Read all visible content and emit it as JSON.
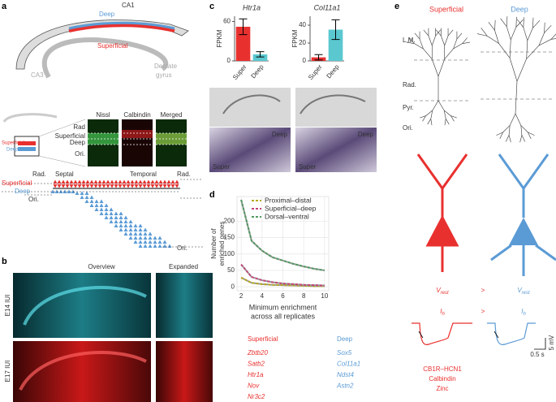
{
  "panel_a": {
    "label": "a",
    "ca1": "CA1",
    "deep": "Deep",
    "superficial": "Superficial",
    "ca3": "CA3",
    "dentate": [
      "Dentate",
      "gyrus"
    ],
    "inset": {
      "superficial": "Superficial",
      "deep": "Deep"
    },
    "stains": [
      "Nissl",
      "Calbindin",
      "Merged"
    ],
    "rows": [
      "Rad",
      "Superficial",
      "Deep",
      "Ori."
    ],
    "axis": {
      "rad_left": "Rad.",
      "septal": "Septal",
      "temporal": "Temporal",
      "rad_right": "Rad.",
      "superficial": "Superficial",
      "deep": "Deep",
      "ori_left": "Ori.",
      "ori_right": "Ori."
    }
  },
  "panel_b": {
    "label": "b",
    "overview": "Overview",
    "expanded": "Expanded",
    "rows": [
      "E14 IUI",
      "E17 IUI"
    ]
  },
  "panel_c": {
    "label": "c",
    "images": [
      {
        "deep": "Deep",
        "super": "Super"
      },
      {
        "deep": "Deep",
        "super": "Super"
      }
    ]
  },
  "panel_d": {
    "label": "d",
    "genes": {
      "superficial": {
        "title": "Superficial",
        "items": [
          "Zbtb20",
          "Satb2",
          "Htr1a",
          "Nov",
          "Nr3c2"
        ]
      },
      "deep": {
        "title": "Deep",
        "items": [
          "Sox5",
          "Col11a1",
          "Ndst4",
          "Astn2"
        ]
      }
    }
  },
  "panel_e": {
    "label": "e",
    "superficial": "Superficial",
    "deep": "Deep",
    "layers": [
      "L.M.",
      "Rad.",
      "Pyr.",
      "Ori."
    ],
    "vrest": {
      "symbol": "V",
      "sub": "rest"
    },
    "compare": [
      ">",
      ">"
    ],
    "ih": {
      "symbol": "I",
      "sub": "h"
    },
    "scale_time": "0.5 s",
    "scale_volt": "5 mV",
    "markers": [
      "CB1R–HCN1",
      "Calbindin",
      "Zinc"
    ]
  },
  "chart_data": [
    {
      "type": "bar",
      "title": "Htr1a",
      "ylabel": "FPKM",
      "categories": [
        "Super",
        "Deep"
      ],
      "values": [
        52,
        10
      ],
      "errors": [
        12,
        4
      ],
      "colors": [
        "#e8312f",
        "#5bc8d0"
      ],
      "ylim": [
        0,
        68
      ],
      "yticks": [
        0,
        60
      ]
    },
    {
      "type": "bar",
      "title": "Col11a1",
      "ylabel": "FPKM",
      "categories": [
        "Super",
        "Deep"
      ],
      "values": [
        4,
        35
      ],
      "errors": [
        3,
        11
      ],
      "colors": [
        "#e8312f",
        "#5bc8d0"
      ],
      "ylim": [
        0,
        50
      ],
      "yticks": [
        0,
        20,
        40
      ]
    },
    {
      "type": "line",
      "xlabel": [
        "Minimum enrichment",
        "across all replicates"
      ],
      "ylabel": [
        "Number of",
        "enriched genes"
      ],
      "x": [
        2,
        3,
        4,
        5,
        6,
        7,
        8,
        9,
        10
      ],
      "series": [
        {
          "name": "Proximal–distal",
          "color": "#b8a81c",
          "values": [
            28,
            12,
            8,
            6,
            5,
            4,
            3,
            2,
            2
          ]
        },
        {
          "name": "Superficial–deep",
          "color": "#c2457a",
          "values": [
            68,
            30,
            20,
            14,
            10,
            8,
            6,
            5,
            4
          ]
        },
        {
          "name": "Dorsal–ventral",
          "color": "#4f9a5f",
          "values": [
            265,
            140,
            110,
            90,
            80,
            70,
            62,
            55,
            50
          ]
        }
      ],
      "xlim": [
        1.6,
        10.4
      ],
      "ylim": [
        -12,
        275
      ],
      "xticks": [
        2,
        4,
        6,
        8,
        10
      ],
      "yticks": [
        0,
        50,
        100,
        150,
        200
      ],
      "grid": true
    }
  ]
}
